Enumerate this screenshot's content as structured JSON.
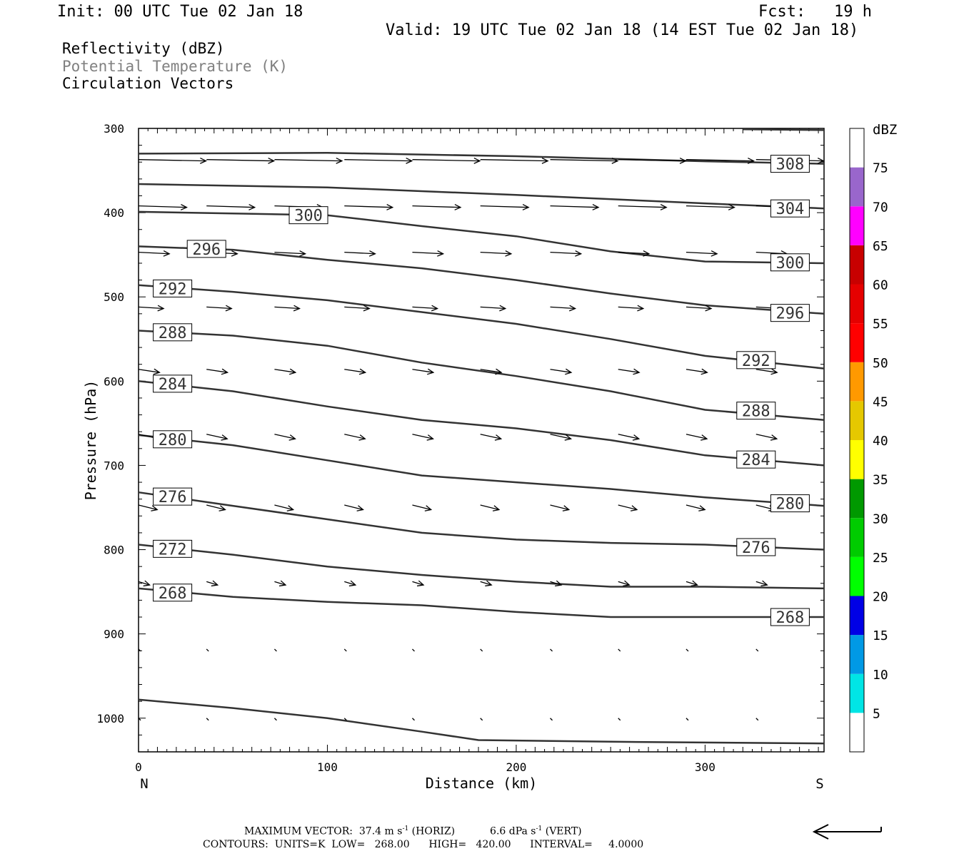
{
  "header": {
    "init": "Init: 00 UTC Tue 02 Jan 18",
    "fcst": "Fcst:   19 h",
    "valid": "Valid: 19 UTC Tue 02 Jan 18 (14 EST Tue 02 Jan 18)"
  },
  "fields": [
    "Reflectivity (dBZ)",
    "Potential Temperature (K)",
    "Circulation Vectors"
  ],
  "footer": {
    "max_vector_label": "MAXIMUM VECTOR:",
    "max_horiz": "37.4 m s",
    "horiz_tag": "(HORIZ)",
    "max_vert": "6.6 dPa s",
    "vert_tag": "(VERT)",
    "superscript": "-1",
    "contours": "CONTOURS:  UNITS=K  LOW=   268.00      HIGH=   420.00      INTERVAL=     4.0000"
  },
  "chart_data": {
    "type": "cross-section contour",
    "xlabel": "Distance (km)",
    "ylabel": "Pressure (hPa)",
    "x_end_labels": [
      "N",
      "S"
    ],
    "xlim": [
      0,
      363
    ],
    "ylim": [
      1040,
      300
    ],
    "x_ticks": [
      0,
      100,
      200,
      300
    ],
    "y_ticks": [
      300,
      400,
      500,
      600,
      700,
      800,
      900,
      1000
    ],
    "colorbar": {
      "title": "dBZ",
      "levels": [
        5,
        10,
        15,
        20,
        25,
        30,
        35,
        40,
        45,
        50,
        55,
        60,
        65,
        70,
        75
      ],
      "colors": [
        "#ffffff",
        "#00e5e5",
        "#0099e5",
        "#0000e5",
        "#00ff00",
        "#00cc00",
        "#009900",
        "#ffff00",
        "#e5c800",
        "#ff9900",
        "#ff0000",
        "#e50000",
        "#c80000",
        "#ff00ff",
        "#9966cc",
        "#ffffff"
      ]
    },
    "contour_color": "#333333",
    "theta_contours": [
      {
        "value": "308",
        "points": [
          [
            0,
            330
          ],
          [
            100,
            329
          ],
          [
            200,
            333
          ],
          [
            300,
            339
          ],
          [
            363,
            342
          ]
        ]
      },
      {
        "value": "304",
        "points": [
          [
            0,
            366
          ],
          [
            100,
            370
          ],
          [
            200,
            379
          ],
          [
            300,
            389
          ],
          [
            363,
            395
          ]
        ]
      },
      {
        "value": "300",
        "points": [
          [
            0,
            399
          ],
          [
            100,
            403
          ],
          [
            150,
            416
          ],
          [
            200,
            428
          ],
          [
            250,
            446
          ],
          [
            300,
            458
          ],
          [
            363,
            460
          ]
        ]
      },
      {
        "value": "296",
        "points": [
          [
            0,
            440
          ],
          [
            50,
            444
          ],
          [
            100,
            456
          ],
          [
            150,
            466
          ],
          [
            200,
            480
          ],
          [
            250,
            496
          ],
          [
            300,
            510
          ],
          [
            363,
            520
          ]
        ]
      },
      {
        "value": "292",
        "points": [
          [
            0,
            486
          ],
          [
            50,
            494
          ],
          [
            100,
            504
          ],
          [
            150,
            518
          ],
          [
            200,
            532
          ],
          [
            250,
            550
          ],
          [
            300,
            570
          ],
          [
            363,
            585
          ]
        ]
      },
      {
        "value": "288",
        "points": [
          [
            0,
            540
          ],
          [
            50,
            546
          ],
          [
            100,
            558
          ],
          [
            150,
            578
          ],
          [
            200,
            594
          ],
          [
            250,
            612
          ],
          [
            300,
            634
          ],
          [
            363,
            646
          ]
        ]
      },
      {
        "value": "284",
        "points": [
          [
            0,
            600
          ],
          [
            50,
            612
          ],
          [
            100,
            630
          ],
          [
            150,
            646
          ],
          [
            200,
            656
          ],
          [
            250,
            670
          ],
          [
            300,
            688
          ],
          [
            363,
            700
          ]
        ]
      },
      {
        "value": "280",
        "points": [
          [
            0,
            664
          ],
          [
            50,
            676
          ],
          [
            100,
            694
          ],
          [
            150,
            712
          ],
          [
            200,
            720
          ],
          [
            250,
            728
          ],
          [
            300,
            738
          ],
          [
            363,
            748
          ]
        ]
      },
      {
        "value": "276",
        "points": [
          [
            0,
            732
          ],
          [
            50,
            748
          ],
          [
            100,
            764
          ],
          [
            150,
            780
          ],
          [
            200,
            788
          ],
          [
            250,
            792
          ],
          [
            300,
            794
          ],
          [
            363,
            800
          ]
        ]
      },
      {
        "value": "272",
        "points": [
          [
            0,
            794
          ],
          [
            50,
            806
          ],
          [
            100,
            820
          ],
          [
            150,
            830
          ],
          [
            200,
            838
          ],
          [
            250,
            844
          ],
          [
            300,
            844
          ],
          [
            363,
            846
          ]
        ]
      },
      {
        "value": "268",
        "points": [
          [
            0,
            846
          ],
          [
            50,
            856
          ],
          [
            100,
            862
          ],
          [
            150,
            866
          ],
          [
            200,
            874
          ],
          [
            250,
            880
          ],
          [
            300,
            880
          ],
          [
            363,
            880
          ]
        ]
      },
      {
        "value": "",
        "points": [
          [
            0,
            978
          ],
          [
            50,
            988
          ],
          [
            100,
            1000
          ],
          [
            150,
            1016
          ],
          [
            180,
            1026
          ],
          [
            250,
            1028
          ],
          [
            363,
            1030
          ]
        ]
      },
      {
        "value": "",
        "points": [
          [
            320,
            301
          ],
          [
            363,
            302
          ]
        ]
      }
    ],
    "contour_labels": [
      {
        "text": "308",
        "x": 345,
        "p": 342
      },
      {
        "text": "304",
        "x": 345,
        "p": 395
      },
      {
        "text": "300",
        "x": 90,
        "p": 403
      },
      {
        "text": "300",
        "x": 345,
        "p": 459
      },
      {
        "text": "296",
        "x": 36,
        "p": 443
      },
      {
        "text": "296",
        "x": 345,
        "p": 519
      },
      {
        "text": "292",
        "x": 18,
        "p": 490
      },
      {
        "text": "292",
        "x": 327,
        "p": 575
      },
      {
        "text": "288",
        "x": 18,
        "p": 542
      },
      {
        "text": "288",
        "x": 327,
        "p": 635
      },
      {
        "text": "284",
        "x": 18,
        "p": 603
      },
      {
        "text": "284",
        "x": 327,
        "p": 693
      },
      {
        "text": "280",
        "x": 18,
        "p": 669
      },
      {
        "text": "280",
        "x": 345,
        "p": 745
      },
      {
        "text": "276",
        "x": 18,
        "p": 737
      },
      {
        "text": "276",
        "x": 327,
        "p": 797
      },
      {
        "text": "272",
        "x": 18,
        "p": 799
      },
      {
        "text": "268",
        "x": 18,
        "p": 851
      },
      {
        "text": "268",
        "x": 345,
        "p": 880
      }
    ],
    "vector_columns_km": [
      0,
      36,
      72,
      109,
      145,
      181,
      218,
      254,
      290,
      327
    ],
    "vector_levels_hPa": [
      337,
      392,
      447,
      512,
      586,
      663,
      747,
      838,
      918,
      1000
    ],
    "vector_u_by_level": [
      35,
      25,
      16,
      13,
      11,
      11,
      10,
      6,
      0.5,
      0.4
    ],
    "vector_slope_by_level": [
      0.02,
      0.03,
      0.05,
      0.06,
      0.15,
      0.22,
      0.25,
      0.3,
      2.0,
      2.0
    ],
    "max_vector": {
      "horiz": 37.4,
      "vert": 6.6
    }
  }
}
